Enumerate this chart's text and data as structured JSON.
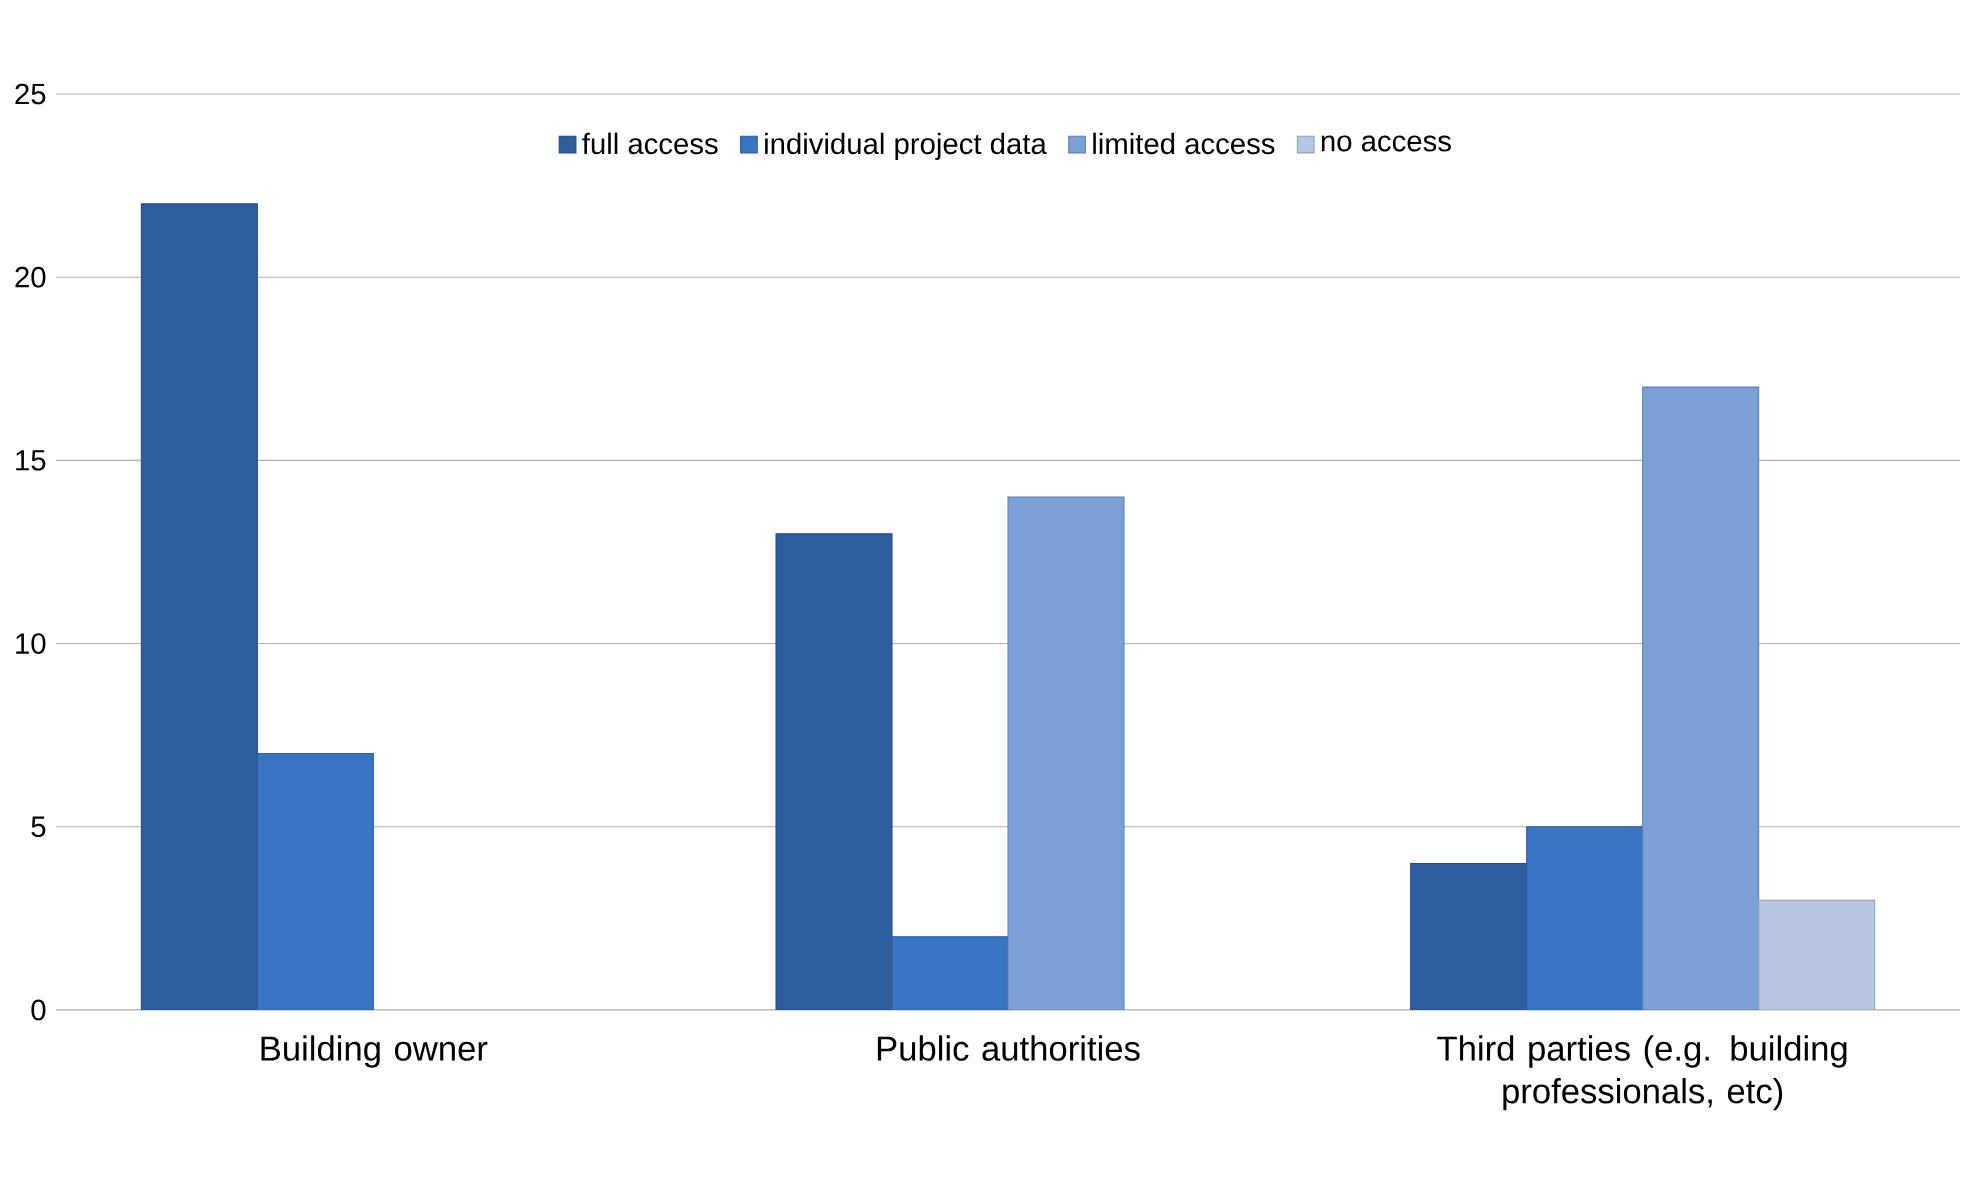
{
  "chart_data": {
    "type": "bar",
    "categories": [
      "Building owner",
      "Public authorities",
      "Third parties (e.g. building professionals, etc)"
    ],
    "series": [
      {
        "name": "full access",
        "color": "#2e5e9e",
        "values": [
          22,
          13,
          4
        ]
      },
      {
        "name": "individual project data",
        "color": "#3a75c4",
        "values": [
          7,
          2,
          5
        ]
      },
      {
        "name": "limited access",
        "color": "#7aa0d6",
        "values": [
          null,
          14,
          17
        ]
      },
      {
        "name": "no access",
        "color": "#b8c7e0",
        "values": [
          null,
          null,
          3
        ]
      }
    ],
    "ylim": [
      0,
      25
    ],
    "yticks": [
      0,
      5,
      10,
      15,
      20,
      25
    ],
    "grid": "y",
    "legend": "top"
  }
}
